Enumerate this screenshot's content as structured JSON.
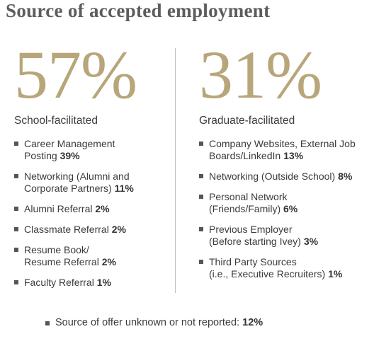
{
  "chart_data": {
    "type": "table",
    "title": "Source of accepted employment",
    "groups": [
      {
        "name": "School-facilitated",
        "total": "57%",
        "items": [
          {
            "label": "Career Management\nPosting",
            "value": "39%"
          },
          {
            "label": "Networking (Alumni and\nCorporate Partners)",
            "value": "11%"
          },
          {
            "label": "Alumni Referral",
            "value": "2%"
          },
          {
            "label": "Classmate Referral",
            "value": "2%"
          },
          {
            "label": "Resume Book/\nResume Referral",
            "value": "2%"
          },
          {
            "label": "Faculty Referral",
            "value": "1%"
          }
        ]
      },
      {
        "name": "Graduate-facilitated",
        "total": "31%",
        "items": [
          {
            "label": "Company Websites, External Job\nBoards/LinkedIn",
            "value": "13%"
          },
          {
            "label": "Networking (Outside School)",
            "value": "8%"
          },
          {
            "label": "Personal Network\n(Friends/Family)",
            "value": "6%"
          },
          {
            "label": "Previous Employer\n(Before starting Ivey)",
            "value": "3%"
          },
          {
            "label": "Third Party Sources\n(i.e., Executive Recruiters)",
            "value": "1%"
          }
        ]
      }
    ],
    "footnote": {
      "label": "Source of offer unknown or not reported:",
      "value": "12%"
    },
    "accent_color": "#b8a67a"
  }
}
